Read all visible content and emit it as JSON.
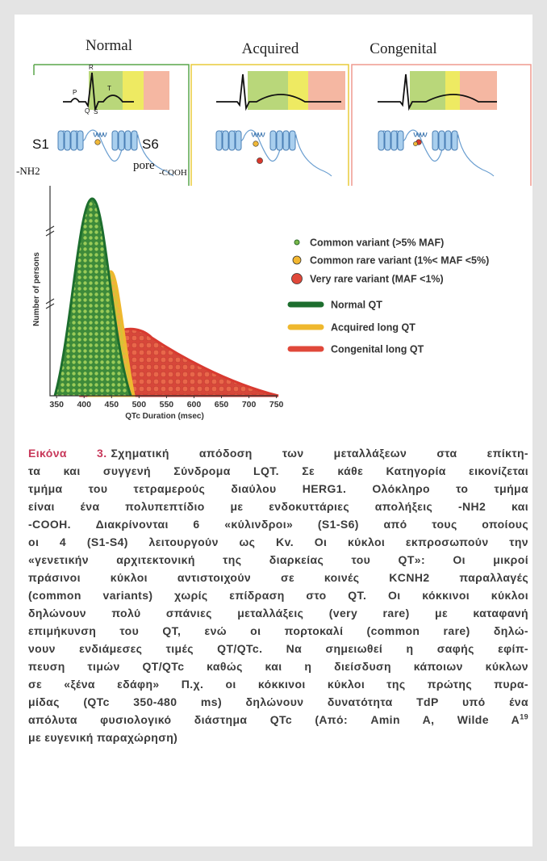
{
  "figure": {
    "panels": [
      {
        "title": "Normal"
      },
      {
        "title": "Acquired"
      },
      {
        "title": "Congenital"
      }
    ],
    "ecg_labels": {
      "p": "P",
      "r": "R",
      "q": "Q",
      "s": "S",
      "t": "T"
    },
    "channel_labels": {
      "s1": "S1",
      "s6": "S6",
      "nh2": "-NH2",
      "pore": "pore",
      "cooh": "-COOH"
    },
    "chart": {
      "y_label": "Number of persons",
      "x_label": "QTc Duration (msec)",
      "xlim": [
        338,
        752
      ],
      "xticks": [
        350,
        400,
        450,
        500,
        550,
        600,
        650,
        700,
        750
      ]
    },
    "legend": {
      "markers": [
        "Common variant (>5% MAF)",
        "Common rare variant (1%< MAF <5%)",
        "Very rare variant (MAF <1%)"
      ],
      "lines": [
        "Normal QT",
        "Acquired long QT",
        "Congenital long QT"
      ]
    }
  },
  "caption": {
    "label": "Εικόνα 3.",
    "lines": [
      "Σχηματική απόδοση των μεταλλάξεων στα επίκτη-",
      "τα και συγγενή Σύνδρομα LQT. Σε κάθε Κατηγορία εικονίζεται",
      "τμήμα του τετραμερούς διαύλου HERG1. Ολόκληρο το τμήμα",
      "είναι ένα πολυπεπτίδιο με ενδοκυττάριες απολήξεις -NH2 και",
      "-COOH. Διακρίνονται 6 «κύλινδροι» (S1-S6) από τους οποίους",
      "οι 4 (S1-S4) λειτουργούν ως Kv. Οι κύκλοι εκπροσωπούν την",
      "«γενετικήν αρχιτεκτονική της διαρκείας του QT»: Οι μικροί",
      "πράσινοι κύκλοι αντιστοιχούν σε κοινές KCNH2 παραλλαγές",
      "(common variants) χωρίς επίδραση στο QT. Οι κόκκινοι κύκλοι",
      "δηλώνουν πολύ σπάνιες μεταλλάξεις (very rare) με καταφανή",
      "επιμήκυνση του QT, ενώ οι πορτοκαλί (common rare) δηλώ-",
      "νουν ενδιάμεσες τιμές QT/QTc. Να σημειωθεί η σαφής εφίπ-",
      "πευση τιμών QT/QTc καθώς και η διείσδυση κάποιων κύκλων",
      "σε «ξένα εδάφη» Π.χ. οι κόκκινοι κύκλοι της πρώτης πυρα-",
      "μίδας (QTc 350-480 ms) δηλώνουν δυνατότητα TdP υπό ένα",
      "απόλυτα φυσιολογικό διάστημα QTc (Από: Amin A, Wilde A",
      "με ευγενική παραχώρηση)"
    ],
    "superscript": "19"
  }
}
